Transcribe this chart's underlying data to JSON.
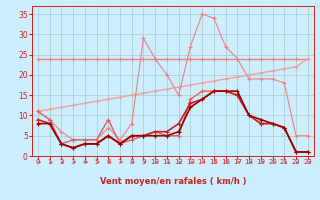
{
  "xlabel": "Vent moyen/en rafales ( km/h )",
  "background_color": "#cceeff",
  "grid_color": "#aacccc",
  "x_ticks": [
    0,
    1,
    2,
    3,
    4,
    5,
    6,
    7,
    8,
    9,
    10,
    11,
    12,
    13,
    14,
    15,
    16,
    17,
    18,
    19,
    20,
    21,
    22,
    23
  ],
  "ylim": [
    0,
    37
  ],
  "xlim": [
    -0.5,
    23.5
  ],
  "y_ticks": [
    0,
    5,
    10,
    15,
    20,
    25,
    30,
    35
  ],
  "series": [
    {
      "x": [
        0,
        1,
        2,
        3,
        4,
        5,
        6,
        7,
        8,
        9,
        10,
        11,
        12,
        13,
        14,
        15,
        16,
        17,
        18,
        19,
        20,
        21,
        22,
        23
      ],
      "y": [
        24,
        24,
        24,
        24,
        24,
        24,
        24,
        24,
        24,
        24,
        24,
        24,
        24,
        24,
        24,
        24,
        24,
        24,
        24,
        24,
        24,
        24,
        24,
        24
      ],
      "color": "#f08080",
      "marker": "+",
      "linewidth": 1.0,
      "markersize": 3,
      "linestyle": "-"
    },
    {
      "x": [
        0,
        1,
        2,
        3,
        4,
        5,
        6,
        7,
        8,
        9,
        10,
        11,
        12,
        13,
        14,
        15,
        16,
        17,
        18,
        19,
        20,
        21,
        22,
        23
      ],
      "y": [
        11,
        11.5,
        12,
        12.5,
        13,
        13.5,
        14,
        14.5,
        15,
        15.5,
        16,
        16.5,
        17,
        17.5,
        18,
        18.5,
        19,
        19.5,
        20,
        20.5,
        21,
        21.5,
        22,
        24
      ],
      "color": "#f0a0a0",
      "marker": "+",
      "linewidth": 1.0,
      "markersize": 3,
      "linestyle": "-"
    },
    {
      "x": [
        0,
        1,
        2,
        3,
        4,
        5,
        6,
        7,
        8,
        9,
        10,
        11,
        12,
        13,
        14,
        15,
        16,
        17,
        18,
        19,
        20,
        21,
        22,
        23
      ],
      "y": [
        11,
        9,
        6,
        4,
        4,
        4,
        7,
        4,
        8,
        29,
        24,
        20,
        15,
        27,
        35,
        34,
        27,
        24,
        19,
        19,
        19,
        18,
        5,
        5
      ],
      "color": "#f08080",
      "marker": "+",
      "linewidth": 0.8,
      "markersize": 3,
      "linestyle": "-"
    },
    {
      "x": [
        0,
        1,
        2,
        3,
        4,
        5,
        6,
        7,
        8,
        9,
        10,
        11,
        12,
        13,
        14,
        15,
        16,
        17,
        18,
        19,
        20,
        21,
        22,
        23
      ],
      "y": [
        11,
        9,
        3,
        4,
        4,
        4,
        9,
        3,
        4,
        5,
        6,
        5,
        5,
        14,
        16,
        16,
        16,
        15,
        10,
        8,
        8,
        7,
        1,
        1
      ],
      "color": "#e06060",
      "marker": "+",
      "linewidth": 1.0,
      "markersize": 3,
      "linestyle": "-"
    },
    {
      "x": [
        0,
        1,
        2,
        3,
        4,
        5,
        6,
        7,
        8,
        9,
        10,
        11,
        12,
        13,
        14,
        15,
        16,
        17,
        18,
        19,
        20,
        21,
        22,
        23
      ],
      "y": [
        9,
        8,
        3,
        2,
        3,
        3,
        5,
        3,
        5,
        5,
        6,
        6,
        8,
        13,
        14,
        16,
        16,
        15,
        10,
        8,
        8,
        7,
        1,
        1
      ],
      "color": "#cc2020",
      "marker": "+",
      "linewidth": 1.2,
      "markersize": 3,
      "linestyle": "-"
    },
    {
      "x": [
        0,
        1,
        2,
        3,
        4,
        5,
        6,
        7,
        8,
        9,
        10,
        11,
        12,
        13,
        14,
        15,
        16,
        17,
        18,
        19,
        20,
        21,
        22,
        23
      ],
      "y": [
        8,
        8,
        3,
        2,
        3,
        3,
        5,
        3,
        5,
        5,
        5,
        5,
        6,
        12,
        14,
        16,
        16,
        16,
        10,
        9,
        8,
        7,
        1,
        1
      ],
      "color": "#990000",
      "marker": "+",
      "linewidth": 1.2,
      "markersize": 3,
      "linestyle": "-"
    }
  ],
  "tick_color": "#cc2222",
  "label_color": "#cc2222",
  "arrow_color": "#dd4444"
}
